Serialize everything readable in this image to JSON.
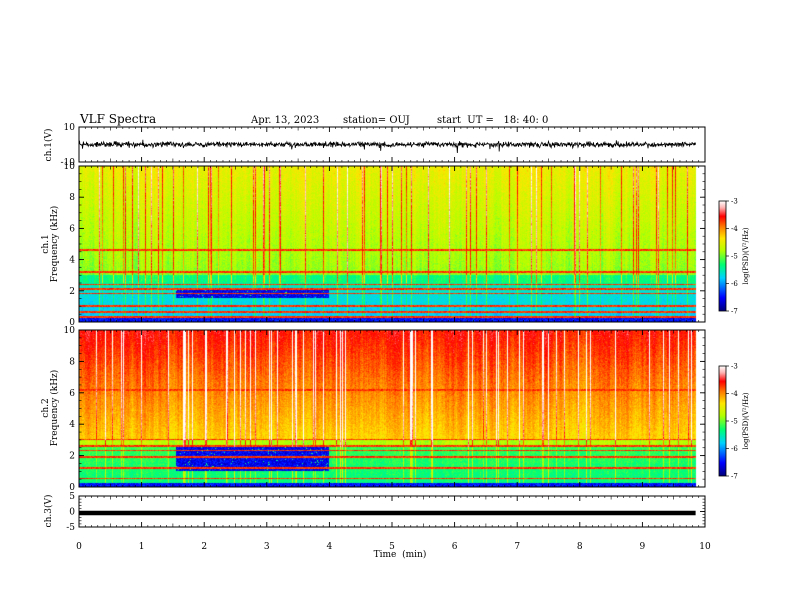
{
  "header": {
    "title": "VLF Spectra",
    "date": "Apr. 13, 2023",
    "station": "station= OUJ",
    "start": "start  UT =   18: 40: 0"
  },
  "chart_data": [
    {
      "type": "line",
      "name": "ch1-waveform",
      "ylabel": "ch.1(V)",
      "ylim": [
        -10,
        10
      ],
      "y_ticks": [
        "10",
        "-10"
      ],
      "xlim": [
        0,
        10
      ],
      "x_unit": "min",
      "mean_value": 0,
      "amplitude_approx": 2.5
    },
    {
      "type": "heatmap",
      "name": "ch1-spectrogram",
      "ylabel": "ch.1\nFrequency (kHz)",
      "ylim": [
        0,
        10
      ],
      "y_ticks": [
        "0",
        "2",
        "4",
        "6",
        "8",
        "10"
      ],
      "xlim": [
        0,
        10
      ],
      "colorbar": {
        "label": "log(PSD)(V²/Hz)",
        "range": [
          -7,
          -3
        ],
        "ticks": [
          "-3",
          "-4",
          "-5",
          "-6",
          "-7"
        ]
      },
      "quiet_band_interval_min": [
        1.55,
        4.0
      ],
      "quiet_band_freq_khz": [
        1.5,
        2.0
      ]
    },
    {
      "type": "heatmap",
      "name": "ch2-spectrogram",
      "ylabel": "ch.2\nFrequency (kHz)",
      "ylim": [
        0,
        10
      ],
      "y_ticks": [
        "0",
        "2",
        "4",
        "6",
        "8",
        "10"
      ],
      "xlim": [
        0,
        10
      ],
      "colorbar": {
        "label": "log(PSD)(V²/Hz)",
        "range": [
          -7,
          -3
        ],
        "ticks": [
          "-3",
          "-4",
          "-5",
          "-6",
          "-7"
        ]
      },
      "quiet_band_interval_min": [
        1.55,
        4.0
      ],
      "quiet_band_freq_khz": [
        1.0,
        2.5
      ]
    },
    {
      "type": "line",
      "name": "ch3-waveform",
      "ylabel": "ch.3(V)",
      "ylim": [
        -5,
        5
      ],
      "y_ticks": [
        "5",
        "0",
        "-5"
      ],
      "xlim": [
        0,
        10
      ],
      "constant_value": -0.5
    }
  ],
  "x_axis": {
    "label": "Time  (min)",
    "ticks": [
      "0",
      "1",
      "2",
      "3",
      "4",
      "5",
      "6",
      "7",
      "8",
      "9",
      "10"
    ],
    "range": [
      0,
      10
    ],
    "data_end": 9.85
  },
  "colors": {
    "palette": [
      "#00007a",
      "#0000ff",
      "#00d2ff",
      "#00ff73",
      "#b4ff00",
      "#ffe600",
      "#ff8200",
      "#ff0000",
      "#ffb4b4",
      "#ffffff"
    ]
  }
}
